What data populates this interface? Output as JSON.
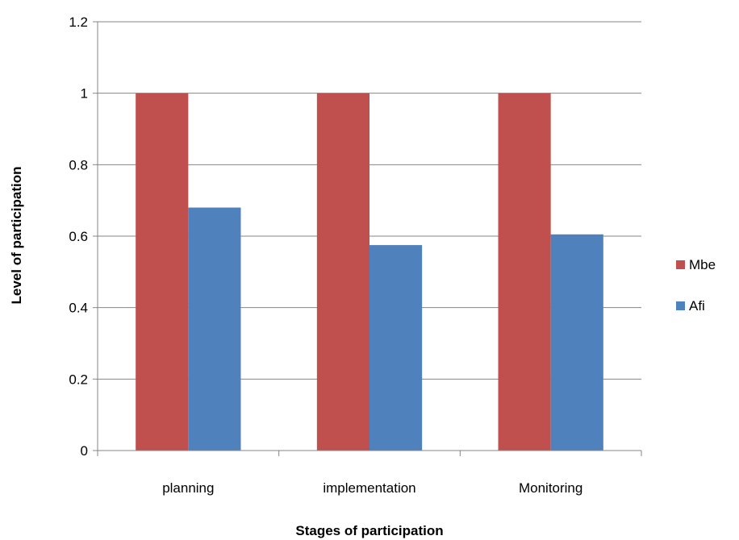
{
  "chart_data": {
    "type": "bar",
    "title": "",
    "xlabel": "Stages of participation",
    "ylabel": "Level of participation",
    "categories": [
      "planning",
      "implementation",
      "Monitoring"
    ],
    "series": [
      {
        "name": "Mbe",
        "color": "#c0504d",
        "values": [
          1.0,
          1.0,
          1.0
        ]
      },
      {
        "name": "Afi",
        "color": "#4f81bd",
        "values": [
          0.68,
          0.575,
          0.605
        ]
      }
    ],
    "ylim": [
      0,
      1.2
    ],
    "yticks": [
      "0",
      "0.2",
      "0.4",
      "0.6",
      "0.8",
      "1",
      "1.2"
    ],
    "grid": true,
    "legend": "right"
  }
}
